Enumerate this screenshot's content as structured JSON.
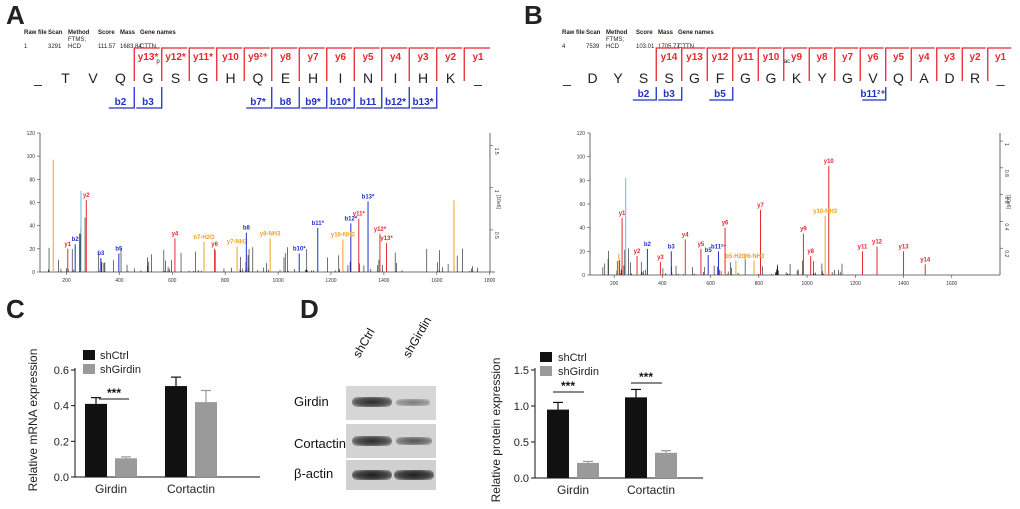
{
  "panels": {
    "A": "A",
    "B": "B",
    "C": "C",
    "D": "D"
  },
  "colors": {
    "y_ion": "#e8272f",
    "b_ion": "#2030c8",
    "neutral": "#f0a020",
    "precursor": "#6cb8e0",
    "bar_black": "#111111",
    "bar_gray": "#9a9a9a"
  },
  "A": {
    "meta_headers": [
      "Raw file",
      "Scan",
      "Method",
      "Score",
      "Mass",
      "Gene names"
    ],
    "meta_values": [
      "1",
      "3291",
      "FTMS; HCD",
      "111.57",
      "1683.84",
      "CTTN"
    ],
    "sequence": [
      "_",
      "T",
      "V",
      "Q",
      "G",
      "S",
      "G",
      "H",
      "Q",
      "E",
      "H",
      "I",
      "N",
      "I",
      "H",
      "K",
      "_"
    ],
    "y_labels": [
      "y13*",
      "y12*",
      "y11*",
      "y10",
      "y9²⁺",
      "y8",
      "y7",
      "y6",
      "y5",
      "y4",
      "y3",
      "y2",
      "y1"
    ],
    "b_labels": [
      "b2",
      "b3",
      "b7*",
      "b8",
      "b9*",
      "b10*",
      "b11",
      "b12*",
      "b13*"
    ],
    "phospho_mark": "p",
    "y_axis_ticks": [
      "0",
      "20",
      "40",
      "60",
      "80",
      "100",
      "120"
    ],
    "x_axis_ticks": [
      "200",
      "400",
      "600",
      "800",
      "1000",
      "1200",
      "1400",
      "1600",
      "1800"
    ],
    "right_axis_label": "[10e6]",
    "right_axis_ticks": [
      "0.5",
      "1",
      "1.5"
    ],
    "peak_labels": [
      "y1",
      "y2",
      "b2",
      "b3",
      "b5",
      "y4",
      "b7-H2O",
      "y6",
      "y7-NH3",
      "b8",
      "y8-NH3",
      "b11*",
      "b12*",
      "y10-NH3",
      "b13*",
      "y11*",
      "y13*",
      "y12*",
      "b10*"
    ]
  },
  "B": {
    "meta_headers": [
      "Raw file",
      "Scan",
      "Method",
      "Score",
      "Mass",
      "Gene names"
    ],
    "meta_values": [
      "4",
      "7539",
      "FTMS; HCD",
      "103.01",
      "1705.77",
      "CTTN"
    ],
    "sequence": [
      "_",
      "D",
      "Y",
      "S",
      "S",
      "G",
      "F",
      "G",
      "G",
      "K",
      "Y",
      "G",
      "V",
      "Q",
      "A",
      "D",
      "R",
      "_"
    ],
    "y_labels": [
      "y14",
      "y13",
      "y12",
      "y11",
      "y10",
      "y9",
      "y8",
      "y7",
      "y6",
      "y5",
      "y4",
      "y3",
      "y2",
      "y1"
    ],
    "b_labels": [
      "b2",
      "b3",
      "b5",
      "b11²⁺"
    ],
    "modification_mark": "ac",
    "y_axis_ticks": [
      "0",
      "20",
      "40",
      "60",
      "80",
      "100",
      "120"
    ],
    "x_axis_ticks": [
      "200",
      "400",
      "600",
      "800",
      "1000",
      "1200",
      "1400",
      "1600"
    ],
    "right_axis_label": "[10e6]",
    "right_axis_ticks": [
      "0.2",
      "0.4",
      "0.6",
      "0.8",
      "1"
    ],
    "peak_labels": [
      "y1",
      "y2",
      "y3",
      "y4",
      "y5",
      "y6",
      "y7",
      "y8",
      "y9",
      "y10",
      "y11",
      "y12",
      "y13",
      "y14",
      "b2",
      "b3",
      "b5",
      "b11²⁺",
      "b5-H2O",
      "y6-NH3",
      "y10-NH3"
    ]
  },
  "C": {
    "ylabel": "Relative mRNA expression",
    "legend": [
      "shCtrl",
      "shGirdin"
    ],
    "significance": "***",
    "categories": [
      "Girdin",
      "Cortactin"
    ],
    "yticks": [
      "0.0",
      "0.2",
      "0.4",
      "0.6"
    ]
  },
  "D": {
    "blot_columns": [
      "shCtrl",
      "shGirdin"
    ],
    "blot_rows": [
      "Girdin",
      "Cortactin",
      "β-actin"
    ],
    "ylabel": "Relative protein expression",
    "legend": [
      "shCtrl",
      "shGirdin"
    ],
    "significance": [
      "***",
      "***"
    ],
    "categories": [
      "Girdin",
      "Cortactin"
    ],
    "yticks": [
      "0.0",
      "0.5",
      "1.0",
      "1.5"
    ]
  },
  "chart_data": [
    {
      "type": "bar",
      "title": "",
      "xlabel": "",
      "ylabel": "Relative mRNA expression",
      "categories": [
        "Girdin",
        "Cortactin"
      ],
      "series": [
        {
          "name": "shCtrl",
          "values": [
            0.41,
            0.51
          ],
          "errors": [
            0.035,
            0.05
          ]
        },
        {
          "name": "shGirdin",
          "values": [
            0.105,
            0.42
          ],
          "errors": [
            0.008,
            0.065
          ]
        }
      ],
      "ylim": [
        0,
        0.6
      ],
      "annotations": [
        "***"
      ]
    },
    {
      "type": "bar",
      "title": "",
      "xlabel": "",
      "ylabel": "Relative protein expression",
      "categories": [
        "Girdin",
        "Cortactin"
      ],
      "series": [
        {
          "name": "shCtrl",
          "values": [
            0.95,
            1.12
          ],
          "errors": [
            0.1,
            0.11
          ]
        },
        {
          "name": "shGirdin",
          "values": [
            0.21,
            0.35
          ],
          "errors": [
            0.02,
            0.03
          ]
        }
      ],
      "ylim": [
        0,
        1.5
      ],
      "annotations": [
        "***",
        "***"
      ]
    }
  ]
}
